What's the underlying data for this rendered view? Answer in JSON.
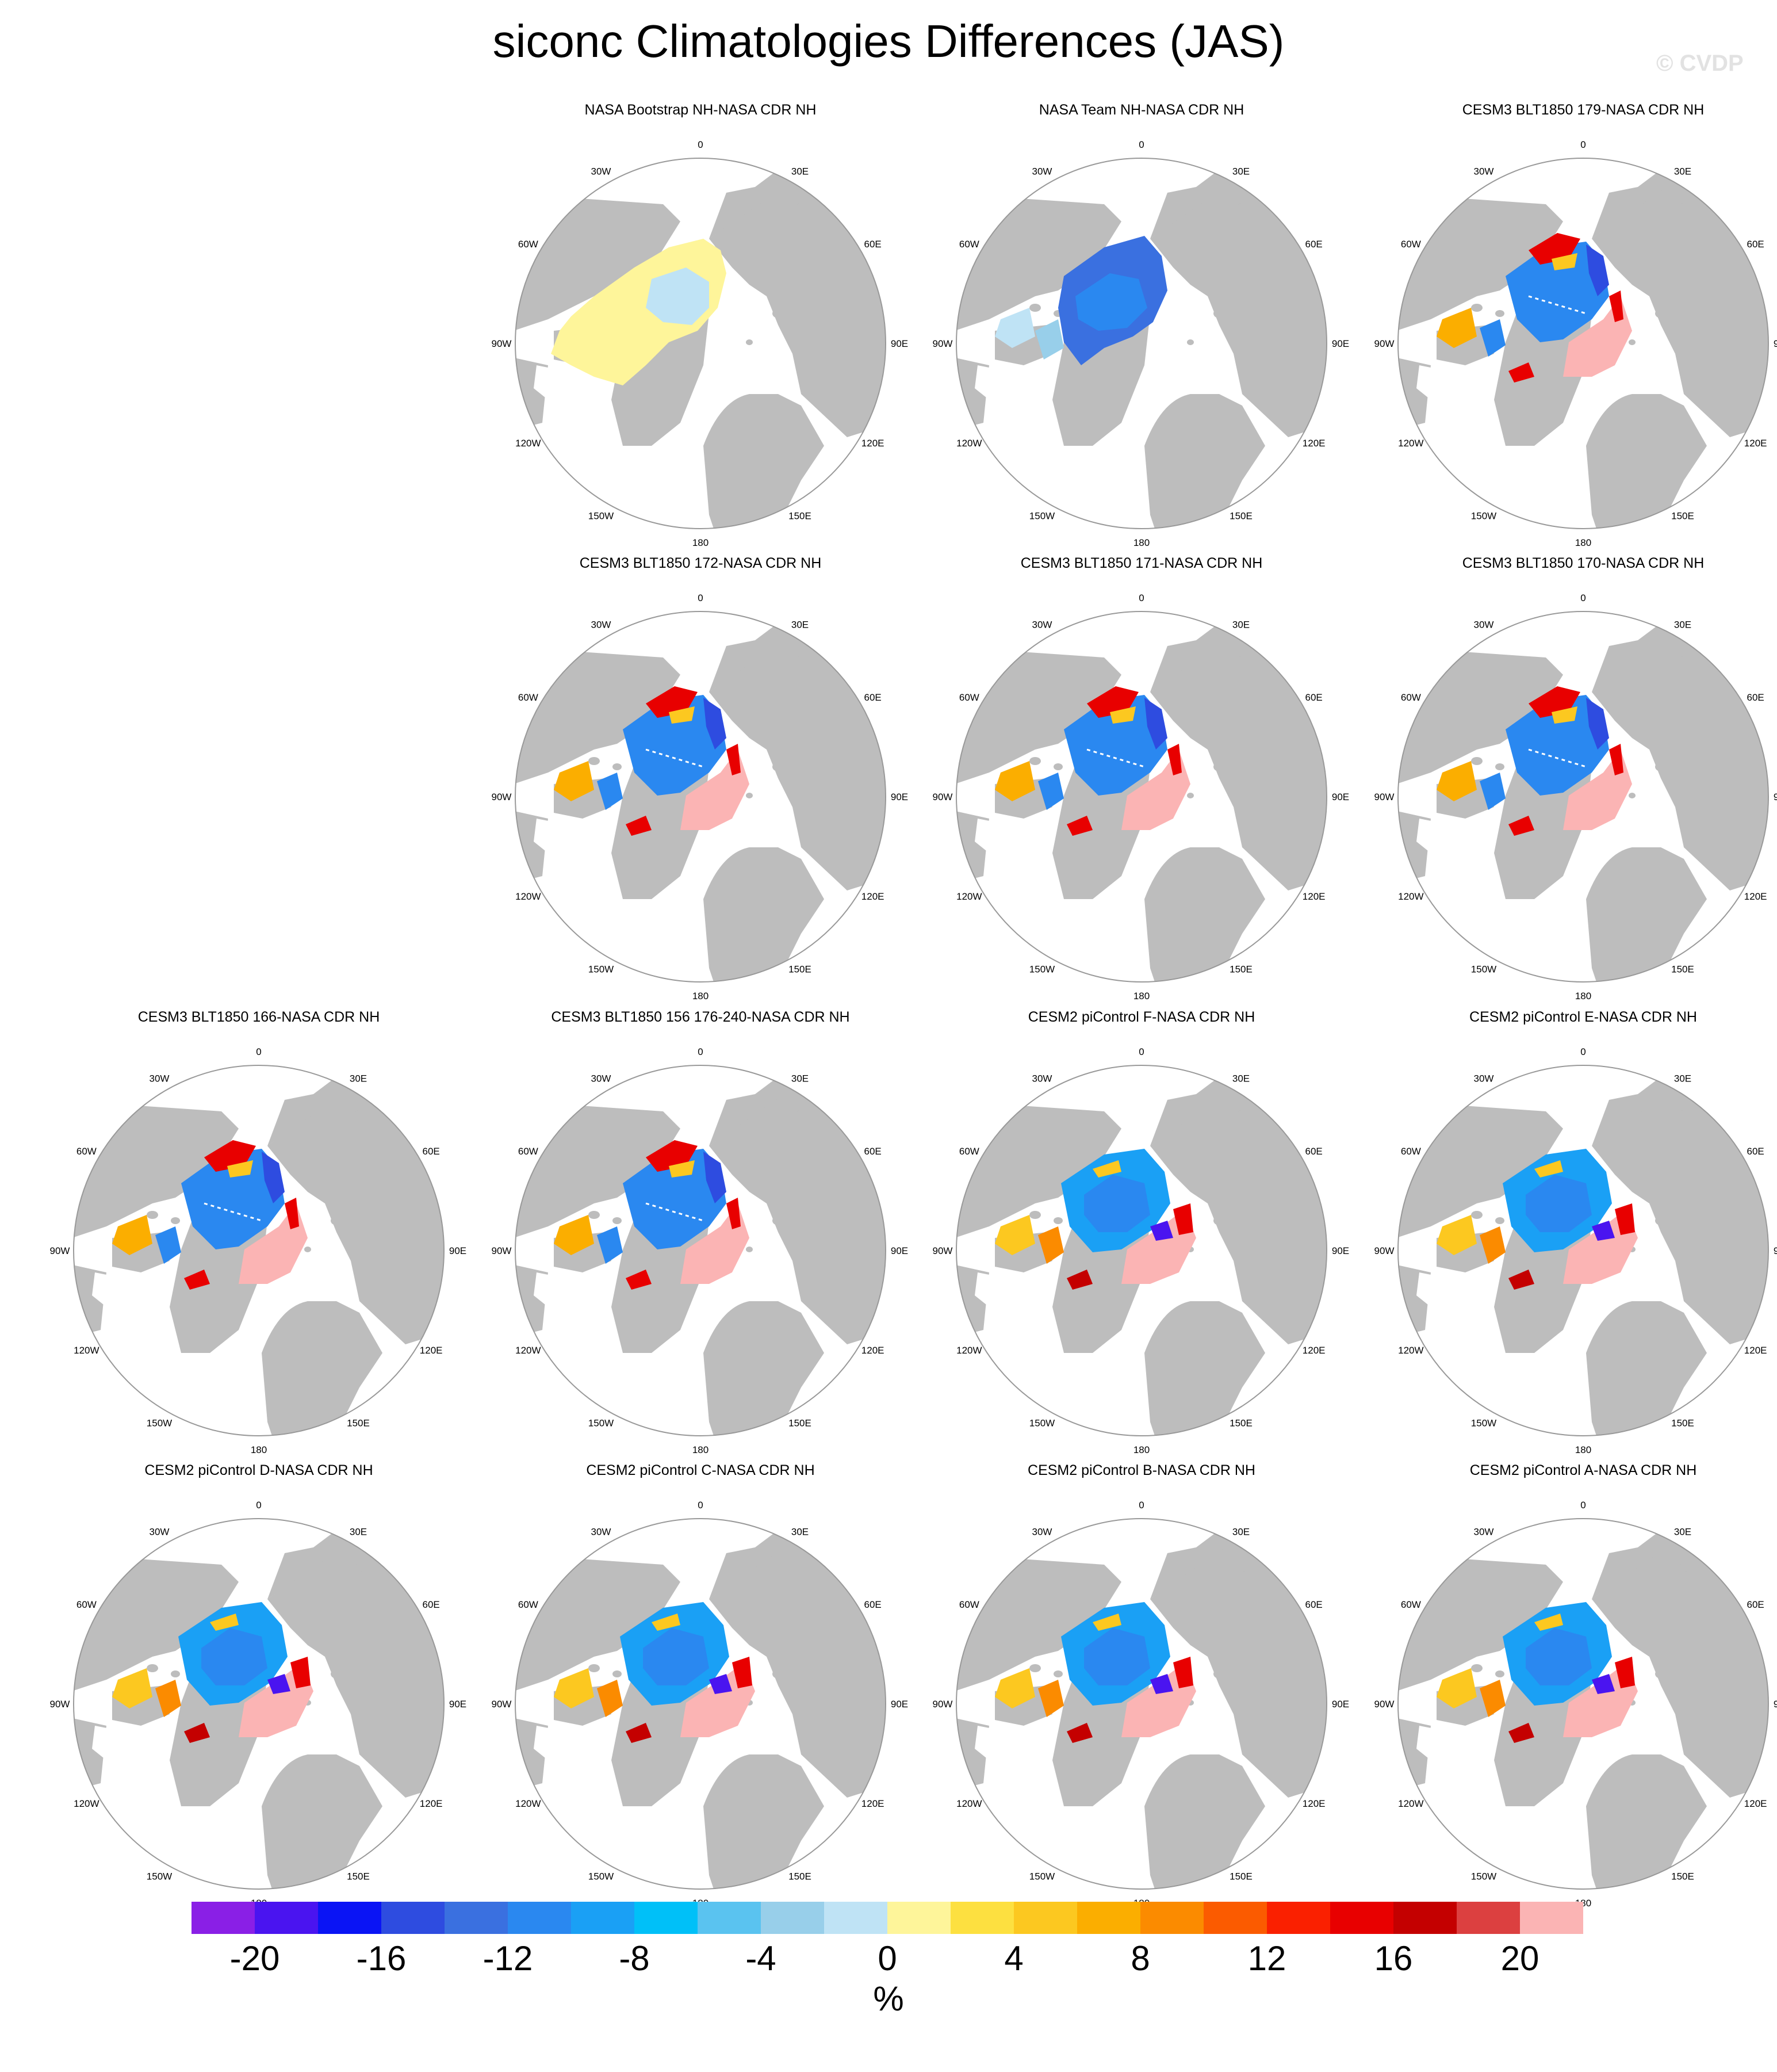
{
  "title": "siconc Climatologies Differences (JAS)",
  "watermark": "© CVDP",
  "lon_labels": [
    "180",
    "150E",
    "120E",
    "90E",
    "60E",
    "30E",
    "0",
    "30W",
    "60W",
    "90W",
    "120W",
    "150W"
  ],
  "panels": [
    {
      "title": "NASA Bootstrap NH-NASA CDR NH",
      "pattern": "bootstrap"
    },
    {
      "title": "NASA Team NH-NASA CDR NH",
      "pattern": "team"
    },
    {
      "title": "CESM3 BLT1850 179-NASA CDR NH",
      "pattern": "blt"
    },
    {
      "title": "CESM3 BLT1850 172-NASA CDR NH",
      "pattern": "blt"
    },
    {
      "title": "CESM3 BLT1850 171-NASA CDR NH",
      "pattern": "blt"
    },
    {
      "title": "CESM3 BLT1850 170-NASA CDR NH",
      "pattern": "blt"
    },
    {
      "title": "CESM3 BLT1850 166-NASA CDR NH",
      "pattern": "blt"
    },
    {
      "title": "CESM3 BLT1850 156 176-240-NASA CDR NH",
      "pattern": "blt"
    },
    {
      "title": "CESM2 piControl F-NASA CDR NH",
      "pattern": "cesm2"
    },
    {
      "title": "CESM2 piControl E-NASA CDR NH",
      "pattern": "cesm2"
    },
    {
      "title": "CESM2 piControl D-NASA CDR NH",
      "pattern": "cesm2"
    },
    {
      "title": "CESM2 piControl C-NASA CDR NH",
      "pattern": "cesm2"
    },
    {
      "title": "CESM2 piControl B-NASA CDR NH",
      "pattern": "cesm2"
    },
    {
      "title": "CESM2 piControl A-NASA CDR NH",
      "pattern": "cesm2"
    }
  ],
  "colorbar": {
    "colors": [
      "#8a1fe6",
      "#4a14f0",
      "#0a14f5",
      "#2e4ce0",
      "#3a70e0",
      "#2a88f0",
      "#1aa0f5",
      "#00c0f8",
      "#5ac3f0",
      "#98cfea",
      "#bfe3f5",
      "#fef59a",
      "#fde040",
      "#fcc820",
      "#fbae00",
      "#fb8b00",
      "#fb5b00",
      "#fa2000",
      "#e80000",
      "#c40000",
      "#dc4040",
      "#fbb4b4"
    ],
    "tick_labels": [
      "-20",
      "-16",
      "-12",
      "-8",
      "-4",
      "0",
      "4",
      "8",
      "12",
      "16",
      "20"
    ],
    "units": "%"
  }
}
